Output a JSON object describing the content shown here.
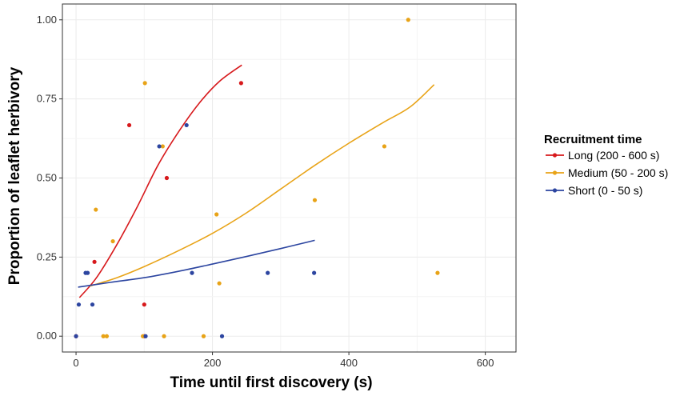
{
  "chart_data": {
    "type": "scatter",
    "title": "",
    "xlabel": "Time until first discovery (s)",
    "ylabel": "Proportion of leaflet herbivory",
    "xlim": [
      -20,
      645
    ],
    "ylim": [
      -0.05,
      1.05
    ],
    "xticks": [
      0,
      200,
      400,
      600
    ],
    "yticks": [
      0.0,
      0.25,
      0.5,
      0.75,
      1.0
    ],
    "xtick_labels": [
      "0",
      "200",
      "400",
      "600"
    ],
    "ytick_labels": [
      "0.00",
      "0.25",
      "0.50",
      "0.75",
      "1.00"
    ],
    "grid": true,
    "legend_position": "right",
    "legend_title": "Recruitment time",
    "series": [
      {
        "name": "Long (200 - 600 s)",
        "color": "#d7191c",
        "points": [
          [
            0,
            0
          ],
          [
            27,
            0.235
          ],
          [
            78,
            0.667
          ],
          [
            100,
            0.1
          ],
          [
            100,
            0
          ],
          [
            133,
            0.5
          ],
          [
            242,
            0.8
          ]
        ],
        "fit": [
          [
            5,
            0.122
          ],
          [
            30,
            0.185
          ],
          [
            60,
            0.29
          ],
          [
            90,
            0.41
          ],
          [
            120,
            0.54
          ],
          [
            150,
            0.645
          ],
          [
            180,
            0.735
          ],
          [
            210,
            0.805
          ],
          [
            243,
            0.857
          ]
        ]
      },
      {
        "name": "Medium (50 - 200 s)",
        "color": "#e8a317",
        "points": [
          [
            29,
            0.4
          ],
          [
            40,
            0
          ],
          [
            45,
            0
          ],
          [
            54,
            0.3
          ],
          [
            98,
            0
          ],
          [
            101,
            0.8
          ],
          [
            127,
            0.6
          ],
          [
            129,
            0
          ],
          [
            187,
            0
          ],
          [
            206,
            0.385
          ],
          [
            210,
            0.167
          ],
          [
            350,
            0.43
          ],
          [
            452,
            0.6
          ],
          [
            487,
            1.0
          ],
          [
            530,
            0.2
          ]
        ],
        "fit": [
          [
            20,
            0.158
          ],
          [
            60,
            0.185
          ],
          [
            100,
            0.22
          ],
          [
            150,
            0.27
          ],
          [
            200,
            0.325
          ],
          [
            250,
            0.39
          ],
          [
            300,
            0.465
          ],
          [
            350,
            0.54
          ],
          [
            400,
            0.61
          ],
          [
            450,
            0.675
          ],
          [
            490,
            0.725
          ],
          [
            525,
            0.795
          ]
        ]
      },
      {
        "name": "Short (0 - 50 s)",
        "color": "#2c45a0",
        "points": [
          [
            0,
            0
          ],
          [
            4,
            0.1
          ],
          [
            14,
            0.2
          ],
          [
            17,
            0.2
          ],
          [
            24,
            0.1
          ],
          [
            102,
            0
          ],
          [
            122,
            0.6
          ],
          [
            162,
            0.667
          ],
          [
            170,
            0.2
          ],
          [
            214,
            0
          ],
          [
            281,
            0.2
          ],
          [
            349,
            0.2
          ]
        ],
        "fit": [
          [
            3,
            0.155
          ],
          [
            50,
            0.17
          ],
          [
            100,
            0.185
          ],
          [
            150,
            0.205
          ],
          [
            200,
            0.228
          ],
          [
            250,
            0.252
          ],
          [
            300,
            0.277
          ],
          [
            350,
            0.303
          ]
        ]
      }
    ]
  }
}
